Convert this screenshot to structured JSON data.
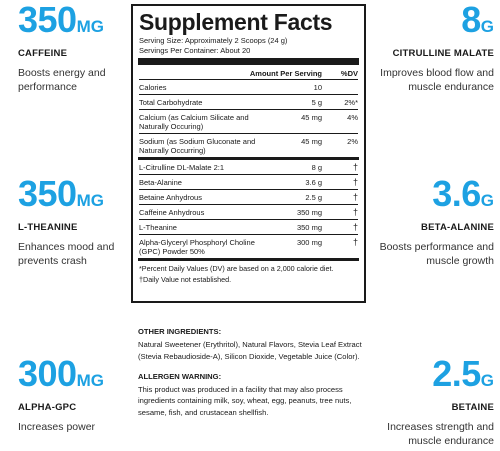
{
  "callouts": {
    "caffeine": {
      "amount": "350",
      "unit": "MG",
      "name": "CAFFEINE",
      "desc": "Boosts energy and performance"
    },
    "theanine": {
      "amount": "350",
      "unit": "MG",
      "name": "L-THEANINE",
      "desc": "Enhances mood and prevents crash"
    },
    "alphagpc": {
      "amount": "300",
      "unit": "MG",
      "name": "ALPHA-GPC",
      "desc": "Increases power"
    },
    "citrulline": {
      "amount": "8",
      "unit": "G",
      "name": "CITRULLINE MALATE",
      "desc": "Improves blood flow and muscle endurance"
    },
    "betaalanine": {
      "amount": "3.6",
      "unit": "G",
      "name": "BETA-ALANINE",
      "desc": "Boosts performance and muscle growth"
    },
    "betaine": {
      "amount": "2.5",
      "unit": "G",
      "name": "BETAINE",
      "desc": "Increases strength and muscle endurance"
    }
  },
  "facts": {
    "title": "Supplement Facts",
    "serving_size": "Serving Size: Approximately 2 Scoops (24 g)",
    "servings_per": "Servings Per Container: About 20",
    "col_amount": "Amount Per Serving",
    "col_dv": "%DV",
    "rows_a": [
      {
        "name": "Calories",
        "amount": "10",
        "dv": ""
      },
      {
        "name": "Total Carbohydrate",
        "amount": "5 g",
        "dv": "2%*"
      },
      {
        "name": "Calcium (as Calcium Silicate and Naturally Occuring)",
        "amount": "45 mg",
        "dv": "4%"
      },
      {
        "name": "Sodium (as Sodium Gluconate and Naturally Occurring)",
        "amount": "45 mg",
        "dv": "2%"
      }
    ],
    "rows_b": [
      {
        "name": "L-Citrulline DL-Malate 2:1",
        "amount": "8 g",
        "dv": "†"
      },
      {
        "name": "Beta-Alanine",
        "amount": "3.6 g",
        "dv": "†"
      },
      {
        "name": "Betaine Anhydrous",
        "amount": "2.5 g",
        "dv": "†"
      },
      {
        "name": "Caffeine Anhydrous",
        "amount": "350 mg",
        "dv": "†"
      },
      {
        "name": "L-Theanine",
        "amount": "350 mg",
        "dv": "†"
      },
      {
        "name": "Alpha-Glyceryl Phosphoryl Choline (GPC) Powder 50%",
        "amount": "300 mg",
        "dv": "†"
      }
    ],
    "foot1": "*Percent Daily Values (DV) are based on a 2,000 calorie diet.",
    "foot2": "†Daily Value not established."
  },
  "ingredients": {
    "other_title": "OTHER INGREDIENTS:",
    "other_text": "Natural Sweetener (Erythritol), Natural Flavors, Stevia Leaf Extract (Stevia Rebaudioside-A), Silicon Dioxide, Vegetable Juice (Color).",
    "allergen_title": "ALLERGEN WARNING:",
    "allergen_text": "This product was produced in a facility that may also process ingredients containing milk, soy, wheat, egg, peanuts, tree nuts, sesame, fish, and crustacean shellfish."
  }
}
